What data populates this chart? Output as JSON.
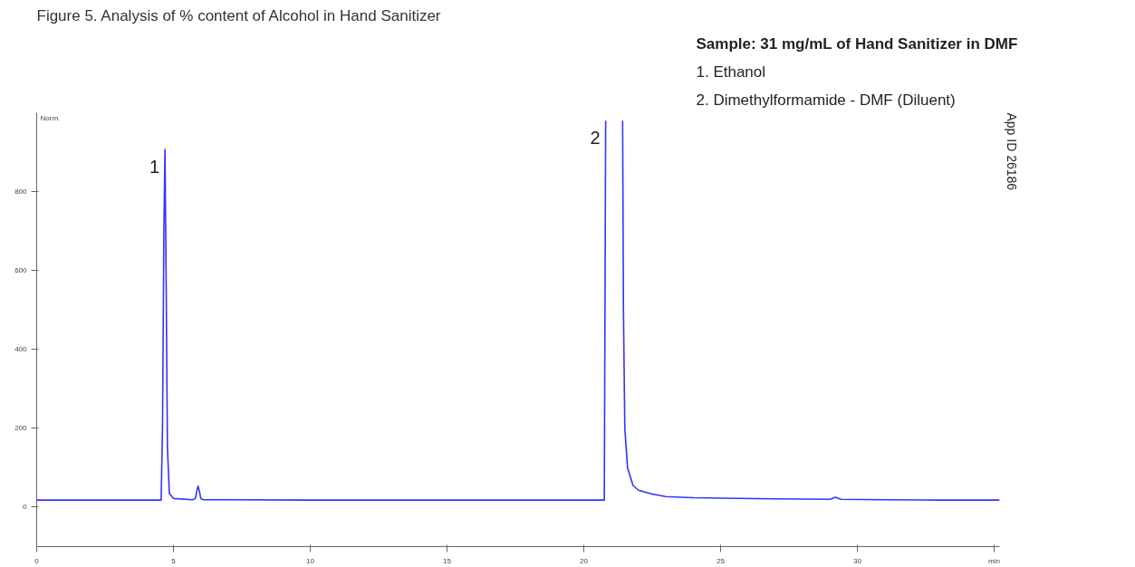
{
  "chart_data": {
    "type": "line",
    "title": "Figure 5. Analysis of % content of Alcohol in Hand Sanitizer",
    "ylabel": "Norm.",
    "x": [
      0,
      4.55,
      4.6,
      4.65,
      4.69,
      4.73,
      4.78,
      4.85,
      5.0,
      5.7,
      5.8,
      5.85,
      5.9,
      5.95,
      6.0,
      6.1,
      10,
      15,
      20,
      20.75,
      20.8,
      20.85,
      21.4,
      21.42,
      21.45,
      21.5,
      21.6,
      21.8,
      22,
      22.5,
      23,
      24,
      25,
      27,
      29,
      29.2,
      29.4,
      31,
      33,
      35.2
    ],
    "series": [
      {
        "color": "#3333ff",
        "values": [
          18,
          18,
          200,
          700,
          907,
          600,
          150,
          35,
          22,
          19,
          22,
          40,
          53,
          40,
          22,
          19,
          18,
          18,
          18,
          18,
          980,
          null,
          null,
          980,
          500,
          200,
          100,
          55,
          43,
          33,
          27,
          24,
          23,
          21,
          20,
          25,
          20,
          19,
          18,
          18
        ]
      }
    ],
    "xlim": [
      0,
      35.2
    ],
    "ylim": [
      -100,
      1000
    ],
    "xticks": [
      0,
      5,
      10,
      15,
      20,
      25,
      30,
      {
        "value": 35,
        "label": "min"
      }
    ],
    "yticks": [
      0,
      200,
      400,
      600,
      800
    ],
    "grid": false,
    "marker": "none",
    "line_style": "solid",
    "annotations": [
      {
        "text": "1",
        "x": 4.69,
        "y": 907
      },
      {
        "text": "2",
        "x": 20.8,
        "y": 980
      },
      "Sample: 31 mg/mL of Hand Sanitizer in DMF",
      "1. Ethanol",
      "2. Dimethylformamide - DMF (Diluent)",
      "App ID 26186"
    ]
  }
}
